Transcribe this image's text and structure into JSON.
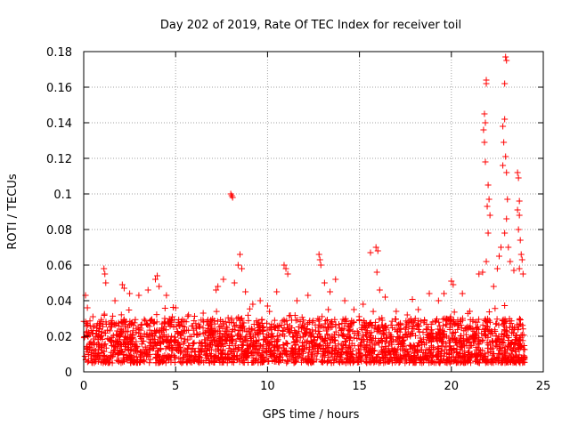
{
  "chart_data": {
    "type": "scatter",
    "title": "Day 202 of 2019, Rate Of TEC Index for receiver toil",
    "xlabel": "GPS time / hours",
    "ylabel": "ROTI / TECUs",
    "xlim": [
      0,
      25
    ],
    "ylim": [
      0,
      0.18
    ],
    "x_ticks": [
      0,
      5,
      10,
      15,
      20,
      25
    ],
    "x_tick_labels": [
      "0",
      "5",
      "10",
      "15",
      "20",
      "25"
    ],
    "y_ticks": [
      0,
      0.02,
      0.04,
      0.06,
      0.08,
      0.1,
      0.12,
      0.14,
      0.16,
      0.18
    ],
    "y_tick_labels": [
      "0",
      "0.02",
      "0.04",
      "0.06",
      "0.08",
      "0.1",
      "0.12",
      "0.14",
      "0.16",
      "0.18"
    ],
    "grid": true,
    "marker": "+",
    "marker_color": "#ff0000",
    "series": [
      {
        "name": "ROTI",
        "baseline_band": {
          "x_start": 0,
          "x_end": 24,
          "y_low": 0.005,
          "y_high": 0.03
        },
        "notable_points": [
          {
            "x": 0.1,
            "y": 0.043
          },
          {
            "x": 0.2,
            "y": 0.036
          },
          {
            "x": 0.5,
            "y": 0.031
          },
          {
            "x": 1.1,
            "y": 0.058
          },
          {
            "x": 1.15,
            "y": 0.055
          },
          {
            "x": 1.2,
            "y": 0.05
          },
          {
            "x": 1.7,
            "y": 0.04
          },
          {
            "x": 2.1,
            "y": 0.049
          },
          {
            "x": 2.2,
            "y": 0.047
          },
          {
            "x": 2.5,
            "y": 0.044
          },
          {
            "x": 3.0,
            "y": 0.043
          },
          {
            "x": 3.5,
            "y": 0.046
          },
          {
            "x": 3.9,
            "y": 0.052
          },
          {
            "x": 4.0,
            "y": 0.054
          },
          {
            "x": 4.1,
            "y": 0.048
          },
          {
            "x": 4.5,
            "y": 0.043
          },
          {
            "x": 5.0,
            "y": 0.036
          },
          {
            "x": 5.7,
            "y": 0.032
          },
          {
            "x": 6.5,
            "y": 0.033
          },
          {
            "x": 7.2,
            "y": 0.046
          },
          {
            "x": 7.3,
            "y": 0.048
          },
          {
            "x": 7.6,
            "y": 0.052
          },
          {
            "x": 8.0,
            "y": 0.1
          },
          {
            "x": 8.05,
            "y": 0.099
          },
          {
            "x": 8.1,
            "y": 0.098
          },
          {
            "x": 8.2,
            "y": 0.05
          },
          {
            "x": 8.4,
            "y": 0.06
          },
          {
            "x": 8.5,
            "y": 0.066
          },
          {
            "x": 8.6,
            "y": 0.058
          },
          {
            "x": 8.8,
            "y": 0.045
          },
          {
            "x": 9.2,
            "y": 0.038
          },
          {
            "x": 9.6,
            "y": 0.04
          },
          {
            "x": 10.0,
            "y": 0.037
          },
          {
            "x": 10.5,
            "y": 0.045
          },
          {
            "x": 10.9,
            "y": 0.06
          },
          {
            "x": 11.0,
            "y": 0.058
          },
          {
            "x": 11.1,
            "y": 0.055
          },
          {
            "x": 11.6,
            "y": 0.04
          },
          {
            "x": 12.2,
            "y": 0.043
          },
          {
            "x": 12.8,
            "y": 0.066
          },
          {
            "x": 12.85,
            "y": 0.063
          },
          {
            "x": 12.9,
            "y": 0.06
          },
          {
            "x": 13.1,
            "y": 0.05
          },
          {
            "x": 13.4,
            "y": 0.045
          },
          {
            "x": 13.7,
            "y": 0.052
          },
          {
            "x": 14.2,
            "y": 0.04
          },
          {
            "x": 14.7,
            "y": 0.035
          },
          {
            "x": 15.2,
            "y": 0.038
          },
          {
            "x": 15.6,
            "y": 0.067
          },
          {
            "x": 15.9,
            "y": 0.07
          },
          {
            "x": 16.0,
            "y": 0.068
          },
          {
            "x": 15.95,
            "y": 0.056
          },
          {
            "x": 16.1,
            "y": 0.046
          },
          {
            "x": 16.4,
            "y": 0.042
          },
          {
            "x": 17.0,
            "y": 0.034
          },
          {
            "x": 17.6,
            "y": 0.032
          },
          {
            "x": 18.2,
            "y": 0.035
          },
          {
            "x": 18.8,
            "y": 0.044
          },
          {
            "x": 19.3,
            "y": 0.04
          },
          {
            "x": 19.6,
            "y": 0.044
          },
          {
            "x": 20.0,
            "y": 0.051
          },
          {
            "x": 20.1,
            "y": 0.049
          },
          {
            "x": 20.6,
            "y": 0.044
          },
          {
            "x": 21.0,
            "y": 0.034
          },
          {
            "x": 21.5,
            "y": 0.055
          },
          {
            "x": 21.7,
            "y": 0.056
          },
          {
            "x": 21.8,
            "y": 0.145
          },
          {
            "x": 21.85,
            "y": 0.14
          },
          {
            "x": 21.75,
            "y": 0.136
          },
          {
            "x": 21.8,
            "y": 0.129
          },
          {
            "x": 21.9,
            "y": 0.164
          },
          {
            "x": 21.9,
            "y": 0.162
          },
          {
            "x": 21.85,
            "y": 0.118
          },
          {
            "x": 22.0,
            "y": 0.105
          },
          {
            "x": 22.05,
            "y": 0.097
          },
          {
            "x": 21.95,
            "y": 0.093
          },
          {
            "x": 22.1,
            "y": 0.088
          },
          {
            "x": 22.0,
            "y": 0.078
          },
          {
            "x": 21.9,
            "y": 0.062
          },
          {
            "x": 22.3,
            "y": 0.048
          },
          {
            "x": 22.6,
            "y": 0.065
          },
          {
            "x": 22.7,
            "y": 0.07
          },
          {
            "x": 22.5,
            "y": 0.058
          },
          {
            "x": 22.8,
            "y": 0.138
          },
          {
            "x": 22.9,
            "y": 0.142
          },
          {
            "x": 22.85,
            "y": 0.129
          },
          {
            "x": 22.95,
            "y": 0.121
          },
          {
            "x": 22.8,
            "y": 0.116
          },
          {
            "x": 23.0,
            "y": 0.112
          },
          {
            "x": 22.9,
            "y": 0.162
          },
          {
            "x": 22.95,
            "y": 0.177
          },
          {
            "x": 23.0,
            "y": 0.175
          },
          {
            "x": 23.05,
            "y": 0.097
          },
          {
            "x": 23.0,
            "y": 0.086
          },
          {
            "x": 22.9,
            "y": 0.078
          },
          {
            "x": 23.1,
            "y": 0.07
          },
          {
            "x": 23.2,
            "y": 0.062
          },
          {
            "x": 23.4,
            "y": 0.057
          },
          {
            "x": 23.6,
            "y": 0.112
          },
          {
            "x": 23.65,
            "y": 0.109
          },
          {
            "x": 23.7,
            "y": 0.096
          },
          {
            "x": 23.6,
            "y": 0.091
          },
          {
            "x": 23.7,
            "y": 0.088
          },
          {
            "x": 23.65,
            "y": 0.08
          },
          {
            "x": 23.75,
            "y": 0.074
          },
          {
            "x": 23.8,
            "y": 0.066
          },
          {
            "x": 23.85,
            "y": 0.063
          },
          {
            "x": 23.7,
            "y": 0.058
          },
          {
            "x": 23.9,
            "y": 0.055
          }
        ]
      }
    ]
  }
}
